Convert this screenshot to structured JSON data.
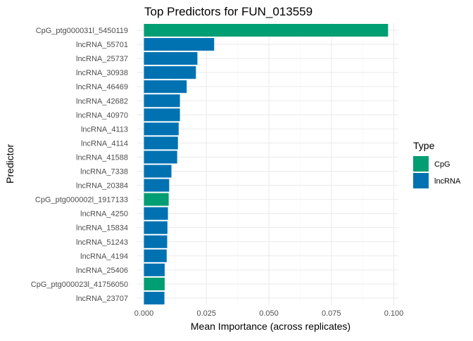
{
  "chart_data": {
    "type": "bar",
    "orientation": "horizontal",
    "title": "Top Predictors for FUN_013559",
    "xlabel": "Mean Importance (across replicates)",
    "ylabel": "Predictor",
    "xlim": [
      0,
      0.1
    ],
    "x_ticks": [
      "0.000",
      "0.025",
      "0.050",
      "0.075",
      "0.100"
    ],
    "x_tick_values": [
      0,
      0.025,
      0.05,
      0.075,
      0.1
    ],
    "grid": true,
    "legend": {
      "title": "Type",
      "placement": "right",
      "entries": [
        {
          "label": "CpG",
          "color": "#009E73"
        },
        {
          "label": "lncRNA",
          "color": "#0072B2"
        }
      ]
    },
    "categories": [
      "CpG_ptg000031l_5450119",
      "lncRNA_55701",
      "lncRNA_25737",
      "lncRNA_30938",
      "lncRNA_46469",
      "lncRNA_42682",
      "lncRNA_40970",
      "lncRNA_4113",
      "lncRNA_4114",
      "lncRNA_41588",
      "lncRNA_7338",
      "lncRNA_20384",
      "CpG_ptg000002l_1917133",
      "lncRNA_4250",
      "lncRNA_15834",
      "lncRNA_51243",
      "lncRNA_4194",
      "lncRNA_25406",
      "CpG_ptg000023l_41756050",
      "lncRNA_23707"
    ],
    "values": [
      0.0977,
      0.0281,
      0.0214,
      0.0208,
      0.0171,
      0.0144,
      0.0144,
      0.0139,
      0.0136,
      0.0133,
      0.011,
      0.0101,
      0.0099,
      0.0096,
      0.0094,
      0.0093,
      0.0091,
      0.0083,
      0.0083,
      0.0082
    ],
    "types": [
      "CpG",
      "lncRNA",
      "lncRNA",
      "lncRNA",
      "lncRNA",
      "lncRNA",
      "lncRNA",
      "lncRNA",
      "lncRNA",
      "lncRNA",
      "lncRNA",
      "lncRNA",
      "CpG",
      "lncRNA",
      "lncRNA",
      "lncRNA",
      "lncRNA",
      "lncRNA",
      "CpG",
      "lncRNA"
    ]
  }
}
